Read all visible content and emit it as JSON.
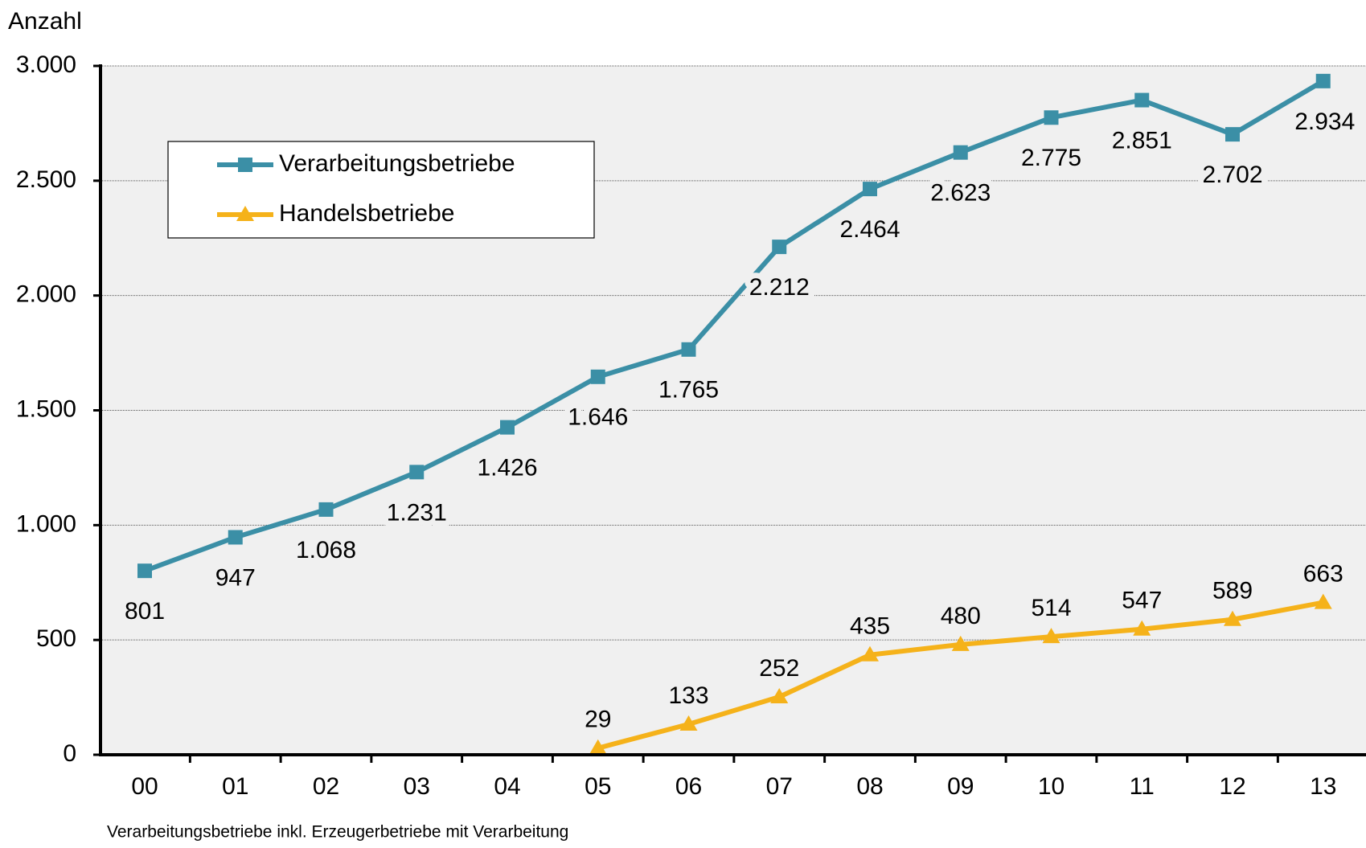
{
  "chart_data": {
    "type": "line",
    "y_label": "Anzahl",
    "footnote": "Verarbeitungsbetriebe inkl. Erzeugerbetriebe mit Verarbeitung",
    "categories": [
      "00",
      "01",
      "02",
      "03",
      "04",
      "05",
      "06",
      "07",
      "08",
      "09",
      "10",
      "11",
      "12",
      "13"
    ],
    "series": [
      {
        "name": "Verarbeitungsbetriebe",
        "color": "#3b8fa6",
        "marker": "square",
        "values": [
          801,
          947,
          1068,
          1231,
          1426,
          1646,
          1765,
          2212,
          2464,
          2623,
          2775,
          2851,
          2702,
          2934
        ],
        "value_labels": [
          "801",
          "947",
          "1.068",
          "1.231",
          "1.426",
          "1.646",
          "1.765",
          "2.212",
          "2.464",
          "2.623",
          "2.775",
          "2.851",
          "2.702",
          "2.934"
        ]
      },
      {
        "name": "Handelsbetriebe",
        "color": "#f5b21a",
        "marker": "triangle",
        "values": [
          null,
          null,
          null,
          null,
          null,
          29,
          133,
          252,
          435,
          480,
          514,
          547,
          589,
          663
        ],
        "value_labels": [
          null,
          null,
          null,
          null,
          null,
          "29",
          "133",
          "252",
          "435",
          "480",
          "514",
          "547",
          "589",
          "663"
        ]
      }
    ],
    "ylim": [
      0,
      3000
    ],
    "yticks": [
      0,
      500,
      {
        "value": 1000,
        "label": "1.000"
      },
      {
        "value": 1500,
        "label": "1.500"
      },
      {
        "value": 2000,
        "label": "2.000"
      },
      {
        "value": 2500,
        "label": "2.500"
      },
      {
        "value": 3000,
        "label": "3.000"
      }
    ],
    "grid": true
  }
}
